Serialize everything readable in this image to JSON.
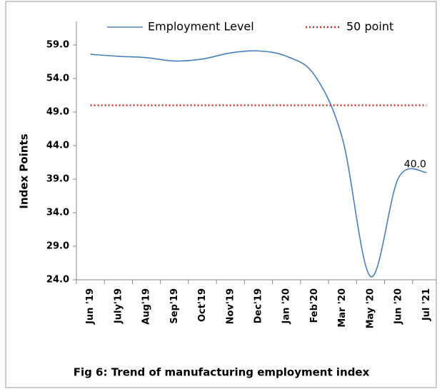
{
  "chart_data": {
    "type": "line",
    "caption": "Fig 6: Trend of manufacturing employment index",
    "y_label": "Index Points",
    "categories": [
      "Jun '19",
      "July'19",
      "Aug'19",
      "Sep'19",
      "Oct'19",
      "Nov'19",
      "Dec'19",
      "Jan '20",
      "Feb'20",
      "Mar '20",
      "May '20",
      "Jun '20",
      "Jul '21"
    ],
    "series": [
      {
        "name": "Employment Level",
        "color": "#4a7ebb",
        "style": "solid",
        "values": [
          57.6,
          57.3,
          57.1,
          56.6,
          56.9,
          57.8,
          58.1,
          57.3,
          54.5,
          45.0,
          24.5,
          39.2,
          40.0
        ],
        "value_labels": [
          null,
          null,
          null,
          null,
          null,
          null,
          null,
          null,
          null,
          null,
          null,
          null,
          "40.0"
        ]
      },
      {
        "name": "50 point",
        "color": "#c0392b",
        "style": "dotted",
        "values": [
          50,
          50,
          50,
          50,
          50,
          50,
          50,
          50,
          50,
          50,
          50,
          50,
          50
        ]
      }
    ],
    "ylim": [
      24,
      62.5
    ],
    "yticks": [
      {
        "value": 24,
        "label": "24.0"
      },
      {
        "value": 29,
        "label": "29.0"
      },
      {
        "value": 34,
        "label": "34.0"
      },
      {
        "value": 39,
        "label": "39.0"
      },
      {
        "value": 44,
        "label": "44.0"
      },
      {
        "value": 49,
        "label": "49.0"
      },
      {
        "value": 54,
        "label": "54.0"
      },
      {
        "value": 59,
        "label": "59.0"
      }
    ],
    "grid": false,
    "legend": "top",
    "smooth": true
  }
}
